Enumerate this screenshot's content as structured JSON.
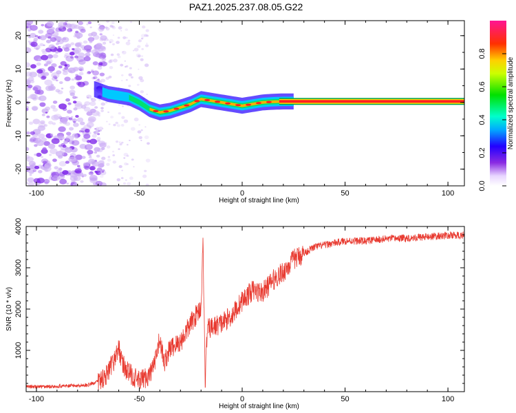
{
  "title": "PAZ1.2025.237.08.05.G22",
  "chart_data": [
    {
      "type": "heatmap",
      "title": "PAZ1.2025.237.08.05.G22",
      "xlabel": "Height of straight line (km)",
      "ylabel": "Frequency (Hz)",
      "xlim": [
        -105,
        108
      ],
      "ylim": [
        -25,
        24.5
      ],
      "xticks": [
        -100,
        -50,
        0,
        50,
        100
      ],
      "yticks": [
        -20,
        -10,
        0,
        10,
        20
      ],
      "colorbar": {
        "label": "Normalized spectral amplitude",
        "range": [
          0,
          1
        ],
        "ticks": [
          0.0,
          0.2,
          0.4,
          0.6,
          0.8
        ]
      },
      "ridge": {
        "x": [
          -72,
          -65,
          -60,
          -55,
          -50,
          -45,
          -40,
          -35,
          -30,
          -25,
          -20,
          -15,
          -10,
          -5,
          0,
          5,
          10,
          15,
          20,
          25,
          50,
          108
        ],
        "freq": [
          4,
          2.5,
          2,
          1.5,
          0,
          -2,
          -3,
          -2.5,
          -1.5,
          -0.5,
          1,
          0.5,
          0,
          -0.5,
          -1,
          -0.5,
          0,
          0.2,
          0.3,
          0.3,
          0.3,
          0.3
        ]
      }
    },
    {
      "type": "line",
      "xlabel": "Height of straight line (km)",
      "ylabel": "SNR (10 * v/v)",
      "xlim": [
        -105,
        108
      ],
      "ylim": [
        0,
        4000
      ],
      "xticks": [
        -100,
        -50,
        0,
        50,
        100
      ],
      "yticks": [
        1000,
        2000,
        3000,
        4000
      ],
      "series": [
        {
          "name": "SNR",
          "color": "#e83a30",
          "x": [
            -105,
            -95,
            -85,
            -75,
            -70,
            -65,
            -62,
            -60,
            -58,
            -55,
            -50,
            -45,
            -42,
            -40,
            -38,
            -35,
            -30,
            -25,
            -20,
            -19,
            -18,
            -17,
            -15,
            -10,
            -5,
            0,
            5,
            10,
            15,
            20,
            25,
            30,
            35,
            40,
            50,
            60,
            70,
            80,
            90,
            100,
            108
          ],
          "y": [
            120,
            120,
            140,
            160,
            250,
            450,
            800,
            1050,
            650,
            450,
            250,
            400,
            750,
            1300,
            700,
            1050,
            1200,
            1650,
            2050,
            3650,
            200,
            1500,
            1550,
            1650,
            1850,
            2200,
            2450,
            2400,
            2700,
            2900,
            3200,
            3350,
            3500,
            3550,
            3650,
            3650,
            3700,
            3720,
            3750,
            3780,
            3790
          ]
        }
      ]
    }
  ]
}
